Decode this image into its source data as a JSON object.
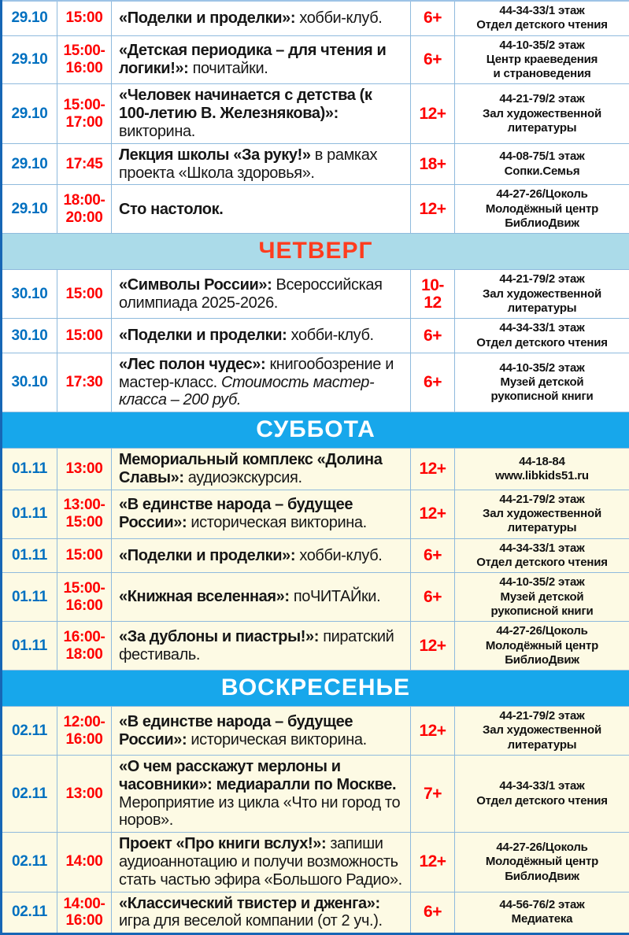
{
  "palette": {
    "date_blue": "#0070C0",
    "time_red": "#FE0000",
    "age_red": "#FE0000",
    "event_text": "#161616",
    "location_text": "#111111",
    "grid_border": "#8FBADD",
    "outer_border": "#1766B5",
    "thursday_header_bg": "#ABDBE9",
    "thursday_header_text": "#FF3C1E",
    "weekend_header_bg": "#17A7EB",
    "weekend_header_text": "#FFFFFF",
    "weekday_row_bg": "#FFFFFF",
    "weekend_row_bg": "#FDFAE4"
  },
  "sections": [
    {
      "id": "wednesday-continued",
      "header": null,
      "cream": false,
      "rows": [
        {
          "date": "29.10",
          "time": "15:00",
          "event": [
            {
              "text": "«Поделки и проделки»:",
              "bold": true
            },
            {
              "text": " хобби-клуб.",
              "bold": false
            }
          ],
          "age": "6+",
          "location": [
            "44-34-33/1 этаж",
            "Отдел детского чтения"
          ]
        },
        {
          "date": "29.10",
          "time": "15:00-16:00",
          "event": [
            {
              "text": "«Детская периодика – для чтения и логики!»:",
              "bold": true
            },
            {
              "text": " почитайки.",
              "bold": false
            }
          ],
          "age": "6+",
          "location": [
            "44-10-35/2 этаж",
            "Центр краеведения",
            "и страноведения"
          ]
        },
        {
          "date": "29.10",
          "time": "15:00-17:00",
          "event": [
            {
              "text": "«Человек начинается с детства (к 100-летию В. Железнякова)»:",
              "bold": true
            },
            {
              "text": " викторина.",
              "bold": false
            }
          ],
          "age": "12+",
          "location": [
            "44-21-79/2 этаж",
            "Зал художественной",
            "литературы"
          ]
        },
        {
          "date": "29.10",
          "time": "17:45",
          "event": [
            {
              "text": "Лекция школы «За руку!»",
              "bold": true
            },
            {
              "text": " в рамках проекта «Школа здоровья».",
              "bold": false
            }
          ],
          "age": "18+",
          "location": [
            "44-08-75/1 этаж",
            "Сопки.Семья"
          ]
        },
        {
          "date": "29.10",
          "time": "18:00-20:00",
          "event": [
            {
              "text": "Сто настолок.",
              "bold": true
            }
          ],
          "age": "12+",
          "location": [
            "44-27-26/Цоколь",
            "Молодёжный центр",
            "БиблиоДвиж"
          ]
        }
      ]
    },
    {
      "id": "thursday",
      "header": {
        "label": "ЧЕТВЕРГ",
        "variant": "powder"
      },
      "cream": false,
      "rows": [
        {
          "date": "30.10",
          "time": "15:00",
          "event": [
            {
              "text": "«Символы России»:",
              "bold": true
            },
            {
              "text": " Всероссийская олимпиада 2025-2026.",
              "bold": false
            }
          ],
          "age": "10-12",
          "location": [
            "44-21-79/2 этаж",
            "Зал художественной",
            "литературы"
          ]
        },
        {
          "date": "30.10",
          "time": "15:00",
          "event": [
            {
              "text": "«Поделки и проделки:",
              "bold": true
            },
            {
              "text": " хобби-клуб.",
              "bold": false
            }
          ],
          "age": "6+",
          "location": [
            "44-34-33/1 этаж",
            "Отдел детского чтения"
          ]
        },
        {
          "date": "30.10",
          "time": "17:30",
          "event": [
            {
              "text": "«Лес полон чудес»:",
              "bold": true
            },
            {
              "text": " книгообозрение и мастер-класс. ",
              "bold": false
            },
            {
              "text": "Стоимость мастер-класса – 200 руб.",
              "bold": false,
              "italic": true
            }
          ],
          "age": "6+",
          "location": [
            "44-10-35/2 этаж",
            "Музей детской",
            "рукописной книги"
          ]
        }
      ]
    },
    {
      "id": "saturday",
      "header": {
        "label": "СУББОТА",
        "variant": "bright"
      },
      "cream": true,
      "rows": [
        {
          "date": "01.11",
          "time": "13:00",
          "event": [
            {
              "text": "Мемориальный комплекс «Долина Славы»:",
              "bold": true
            },
            {
              "text": " аудиоэкскурсия.",
              "bold": false
            }
          ],
          "age": "12+",
          "location": [
            "44-18-84",
            "www.libkids51.ru"
          ]
        },
        {
          "date": "01.11",
          "time": "13:00-15:00",
          "event": [
            {
              "text": "«В единстве народа – будущее России»:",
              "bold": true
            },
            {
              "text": " историческая викторина.",
              "bold": false
            }
          ],
          "age": "12+",
          "location": [
            "44-21-79/2 этаж",
            "Зал художественной",
            "литературы"
          ]
        },
        {
          "date": "01.11",
          "time": "15:00",
          "event": [
            {
              "text": "«Поделки и проделки»:",
              "bold": true
            },
            {
              "text": " хобби-клуб.",
              "bold": false
            }
          ],
          "age": "6+",
          "location": [
            "44-34-33/1 этаж",
            "Отдел детского чтения"
          ]
        },
        {
          "date": "01.11",
          "time": "15:00-16:00",
          "event": [
            {
              "text": "«Книжная вселенная»:",
              "bold": true
            },
            {
              "text": " поЧИТАЙки.",
              "bold": false
            }
          ],
          "age": "6+",
          "location": [
            "44-10-35/2 этаж",
            "Музей детской",
            "рукописной книги"
          ]
        },
        {
          "date": "01.11",
          "time": "16:00-18:00",
          "event": [
            {
              "text": "«За дублоны и пиастры!»:",
              "bold": true
            },
            {
              "text": " пиратский фестиваль.",
              "bold": false
            }
          ],
          "age": "12+",
          "location": [
            "44-27-26/Цоколь",
            "Молодёжный центр",
            "БиблиоДвиж"
          ]
        }
      ]
    },
    {
      "id": "sunday",
      "header": {
        "label": "ВОСКРЕСЕНЬЕ",
        "variant": "bright"
      },
      "cream": true,
      "rows": [
        {
          "date": "02.11",
          "time": "12:00-16:00",
          "event": [
            {
              "text": "«В единстве народа – будущее России»:",
              "bold": true
            },
            {
              "text": " историческая викторина.",
              "bold": false
            }
          ],
          "age": "12+",
          "location": [
            "44-21-79/2 этаж",
            "Зал художественной",
            "литературы"
          ]
        },
        {
          "date": "02.11",
          "time": "13:00",
          "event": [
            {
              "text": "«О чем расскажут мерлоны и часовники»: медиаралли по Москве.",
              "bold": true
            },
            {
              "text": " Мероприятие из цикла «Что ни город то норов».",
              "bold": false
            }
          ],
          "age": "7+",
          "location": [
            "44-34-33/1 этаж",
            "Отдел детского чтения"
          ]
        },
        {
          "date": "02.11",
          "time": "14:00",
          "event": [
            {
              "text": "Проект «Про книги вслух!»:",
              "bold": true
            },
            {
              "text": " запиши аудиоаннотацию и получи возможность стать частью эфира «Большого Радио».",
              "bold": false
            }
          ],
          "age": "12+",
          "location": [
            "44-27-26/Цоколь",
            "Молодёжный центр",
            "БиблиоДвиж"
          ]
        },
        {
          "date": "02.11",
          "time": "14:00-16:00",
          "event": [
            {
              "text": "«Классический твистер и дженга»:",
              "bold": true
            },
            {
              "text": " игра для веселой компании (от 2 уч.).",
              "bold": false
            }
          ],
          "age": "6+",
          "location": [
            "44-56-76/2 этаж",
            "Медиатека"
          ]
        }
      ]
    }
  ]
}
